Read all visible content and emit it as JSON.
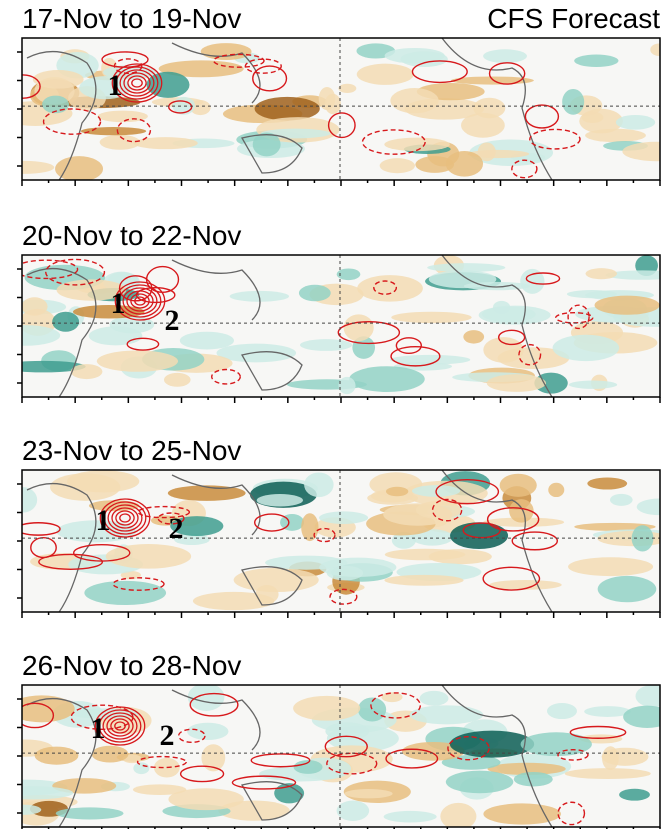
{
  "header": {
    "source": "CFS Forecast"
  },
  "panels": [
    {
      "title": "17-Nov to 19-Nov",
      "markers": [
        "1"
      ]
    },
    {
      "title": "20-Nov to 22-Nov",
      "markers": [
        "1",
        "2"
      ]
    },
    {
      "title": "23-Nov to 25-Nov",
      "markers": [
        "1",
        "2"
      ]
    },
    {
      "title": "26-Nov to 28-Nov",
      "markers": [
        "1",
        "2"
      ]
    }
  ]
}
